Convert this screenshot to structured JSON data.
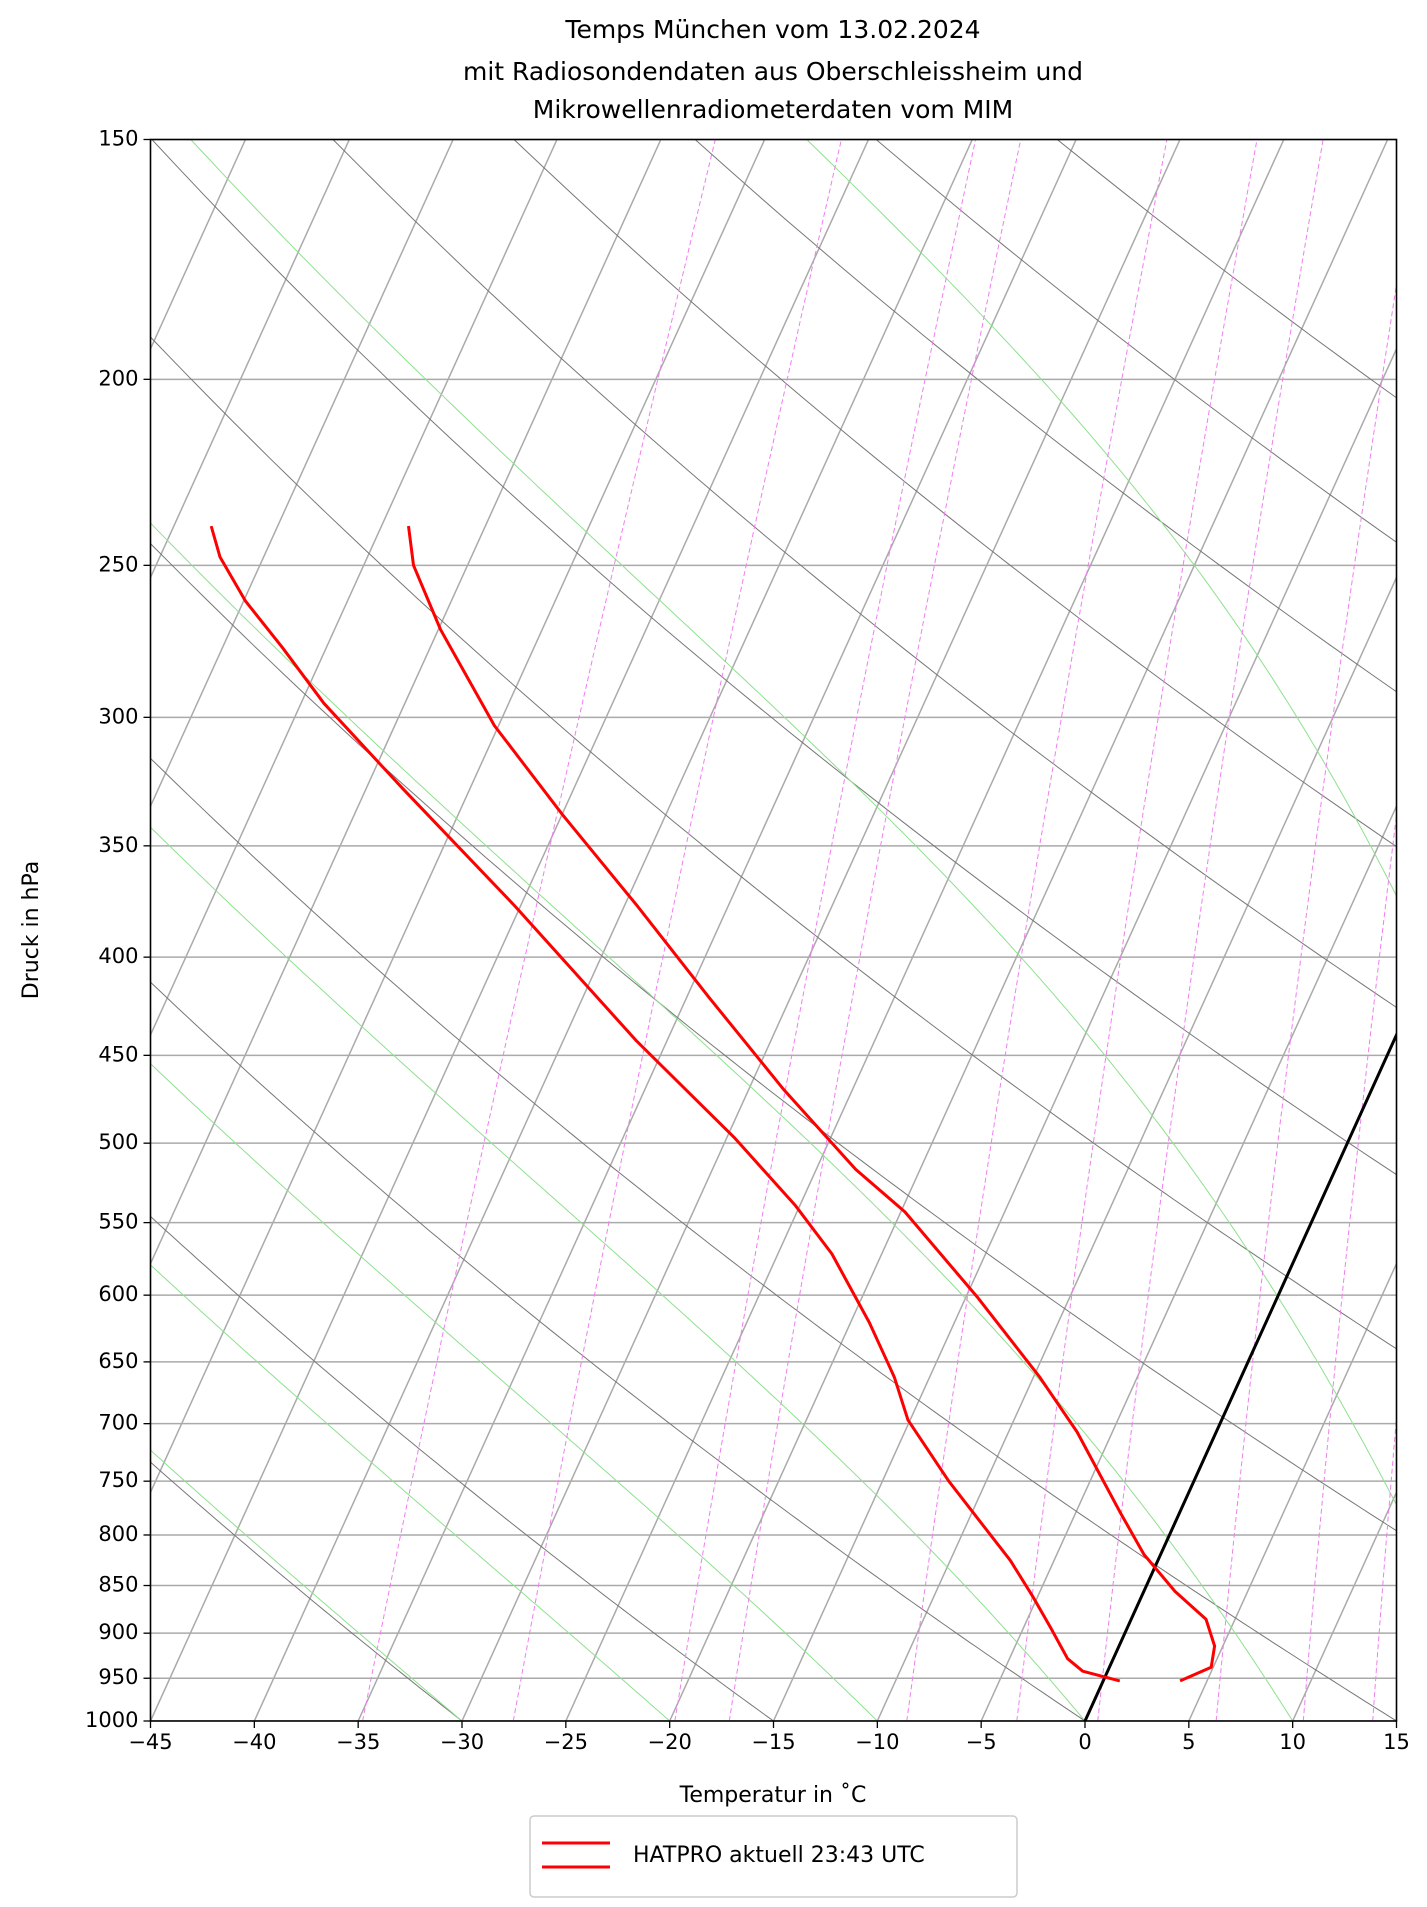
{
  "chart_data": {
    "type": "skewt",
    "title": [
      "Temps München vom 13.02.2024",
      "mit Radiosondendaten aus Oberschleissheim und",
      "Mikrowellenradiometerdaten vom MIM"
    ],
    "x_label": "Temperatur in $^\\circ$C",
    "x_label_text": "Temperatur in ˚C",
    "y_label": "Druck in hPa",
    "xlim": [
      -45,
      15
    ],
    "ylim": [
      1000,
      150
    ],
    "log_y": true,
    "grid": true,
    "xticks": [
      {
        "value": -45,
        "label": "−45"
      },
      {
        "value": -40,
        "label": "−40"
      },
      {
        "value": -35,
        "label": "−35"
      },
      {
        "value": -30,
        "label": "−30"
      },
      {
        "value": -25,
        "label": "−25"
      },
      {
        "value": -20,
        "label": "−20"
      },
      {
        "value": -15,
        "label": "−15"
      },
      {
        "value": -10,
        "label": "−10"
      },
      {
        "value": -5,
        "label": "−5"
      },
      0,
      5,
      10,
      15
    ],
    "yticks": [
      150,
      200,
      250,
      300,
      350,
      400,
      450,
      500,
      550,
      600,
      650,
      700,
      750,
      800,
      850,
      900,
      950,
      1000
    ],
    "isotherm_spacing": 5,
    "isotherm_color": "#aaaaaa",
    "highlight_isotherm": 0,
    "highlight_color": "#000000",
    "dry_adiabats": [
      -30,
      -15,
      0,
      15,
      30,
      45,
      60,
      75,
      90,
      105,
      120,
      135
    ],
    "dry_adiabat_color": "#777777",
    "moist_adiabats": [
      -30,
      -20,
      -10,
      0,
      10,
      20,
      30,
      40
    ],
    "moist_adiabat_color": "#8fe08f",
    "mixing_ratios": [
      0.0002,
      0.0004,
      0.0008,
      0.001,
      0.002,
      0.003,
      0.004,
      0.006,
      0.008,
      0.01
    ],
    "mixing_ratio_color": "#f07ef0",
    "series": [
      {
        "name": "HATPRO aktuell 23:43 UTC",
        "color": "#ff0000",
        "temperature": {
          "p": [
            238.5,
            250,
            270,
            303,
            337,
            376,
            420,
            469,
            516,
            543,
            602,
            662,
            707,
            778,
            819,
            856,
            885,
            914,
            937.5,
            953
          ],
          "t": [
            -58.7,
            -57.6,
            -54.9,
            -50.2,
            -45.0,
            -39.4,
            -33.9,
            -28.3,
            -23.1,
            -19.8,
            -14.4,
            -9.7,
            -6.7,
            -2.9,
            -0.8,
            1.5,
            3.6,
            4.6,
            4.9,
            3.7
          ]
        },
        "dewpoint": {
          "p": [
            238.5,
            247.5,
            261,
            276,
            295,
            327,
            376,
            442,
            497,
            539,
            571,
            620,
            662,
            697,
            750,
            825,
            862,
            894,
            928,
            942,
            953
          ],
          "t": [
            -68.2,
            -67.1,
            -64.9,
            -62.1,
            -58.9,
            -53.2,
            -45.3,
            -36.5,
            -29.6,
            -25.2,
            -22.4,
            -19.1,
            -16.7,
            -15.1,
            -11.8,
            -7.1,
            -5.2,
            -3.7,
            -2.2,
            -1.2,
            0.8
          ]
        }
      }
    ]
  }
}
